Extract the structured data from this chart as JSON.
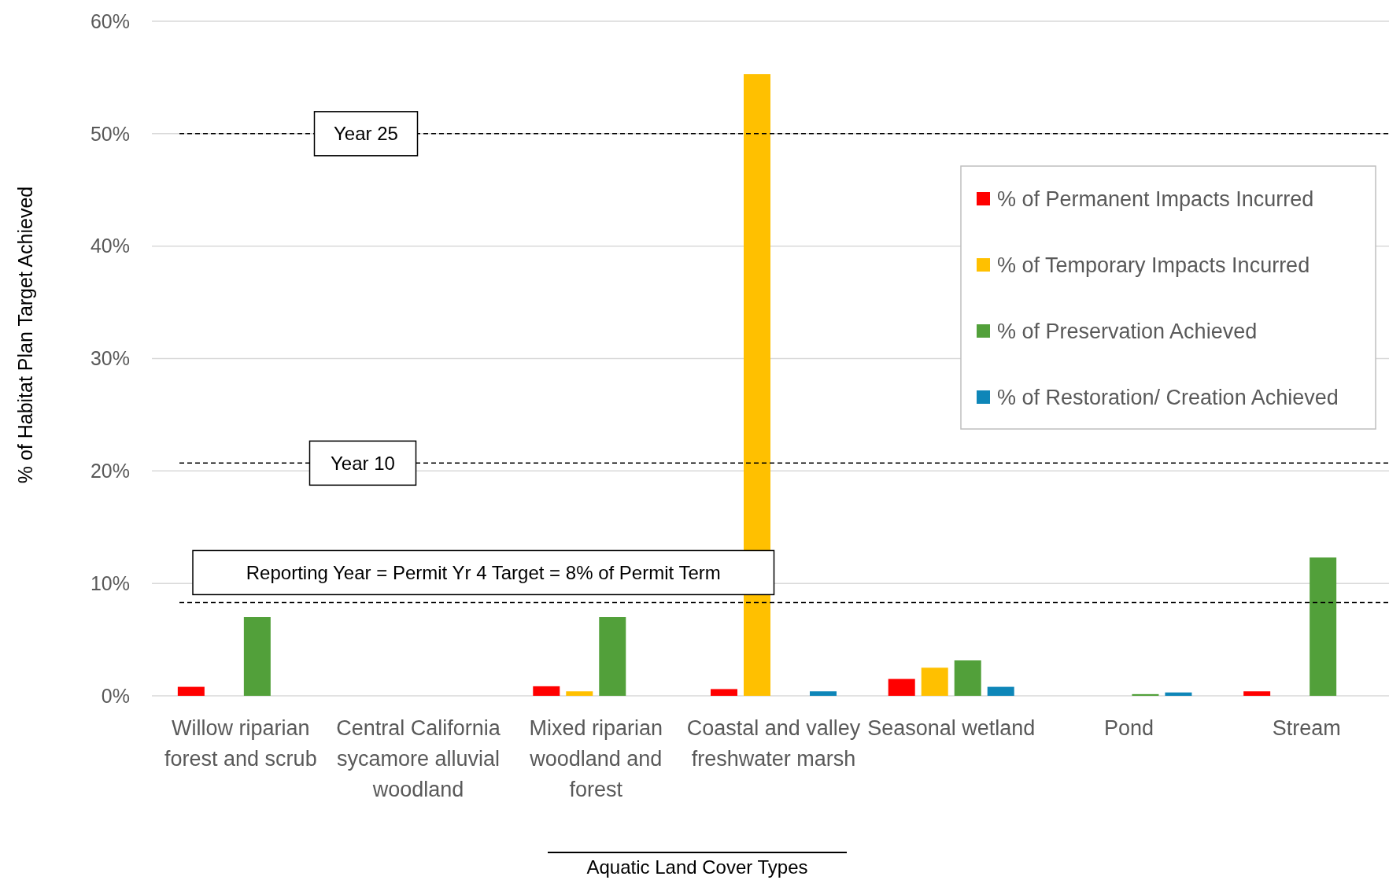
{
  "chart_data": {
    "type": "bar",
    "xlabel": "Aquatic Land Cover Types",
    "ylabel": "% of Habitat Plan Target Achieved",
    "categories": [
      "Willow riparian forest and scrub",
      "Central California sycamore alluvial woodland",
      "Mixed riparian woodland and forest",
      "Coastal and valley freshwater marsh",
      "Seasonal wetland",
      "Pond",
      "Stream"
    ],
    "series": [
      {
        "name": "% of Permanent Impacts Incurred",
        "color": "#ff0000",
        "values": [
          0.8,
          0,
          0.85,
          0.6,
          1.5,
          0,
          0.4
        ]
      },
      {
        "name": "% of Temporary Impacts Incurred",
        "color": "#ffc000",
        "values": [
          0,
          0,
          0.4,
          55.3,
          2.5,
          0,
          0
        ]
      },
      {
        "name": "% of Preservation Achieved",
        "color": "#52a03a",
        "values": [
          7.0,
          0,
          7.0,
          0,
          3.15,
          0.15,
          12.3
        ]
      },
      {
        "name": "% of Restoration/ Creation Achieved",
        "color": "#0e86b8",
        "values": [
          0,
          0,
          0,
          0.4,
          0.8,
          0.3,
          0
        ]
      }
    ],
    "ylim": [
      0,
      60
    ],
    "yticks": [
      {
        "value": 0,
        "label": "0%"
      },
      {
        "value": 10,
        "label": "10%"
      },
      {
        "value": 20,
        "label": "20%"
      },
      {
        "value": 30,
        "label": "30%"
      },
      {
        "value": 40,
        "label": "40%"
      },
      {
        "value": 50,
        "label": "50%"
      },
      {
        "value": 60,
        "label": "60%"
      }
    ],
    "grid": "y",
    "legend": "right",
    "ref_lines": [
      {
        "axis": "y",
        "value": 50,
        "label": "Year 25",
        "line_style": "dashed"
      },
      {
        "axis": "y",
        "value": 20.7,
        "label": "Year 10",
        "line_style": "dashed"
      },
      {
        "axis": "y",
        "value": 8.3,
        "label": "Reporting Year = Permit Yr 4 Target = 8% of Permit Term",
        "line_style": "dashed"
      }
    ]
  }
}
